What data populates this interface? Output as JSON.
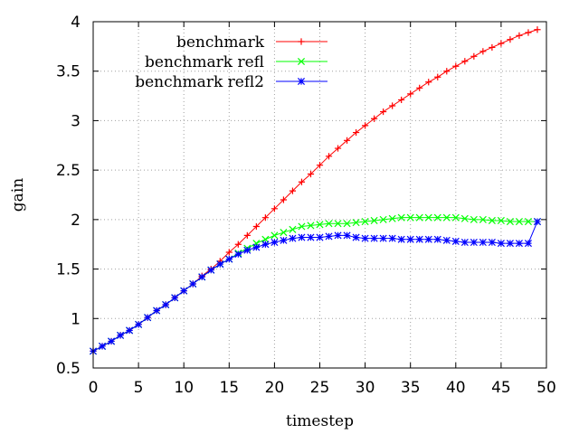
{
  "chart_data": {
    "type": "line",
    "title": "",
    "xlabel": "timestep",
    "ylabel": "gain",
    "xlim": [
      0,
      50
    ],
    "ylim": [
      0.5,
      4
    ],
    "xticks": [
      0,
      5,
      10,
      15,
      20,
      25,
      30,
      35,
      40,
      45,
      50
    ],
    "yticks": [
      0.5,
      1,
      1.5,
      2,
      2.5,
      3,
      3.5,
      4
    ],
    "xtick_labels": [
      "0",
      "5",
      "10",
      "15",
      "20",
      "25",
      "30",
      "35",
      "40",
      "45",
      "50"
    ],
    "ytick_labels": [
      "0.5",
      "1",
      "1.5",
      "2",
      "2.5",
      "3",
      "3.5",
      "4"
    ],
    "grid": true,
    "legend_position": "top-left",
    "x": [
      0,
      1,
      2,
      3,
      4,
      5,
      6,
      7,
      8,
      9,
      10,
      11,
      12,
      13,
      14,
      15,
      16,
      17,
      18,
      19,
      20,
      21,
      22,
      23,
      24,
      25,
      26,
      27,
      28,
      29,
      30,
      31,
      32,
      33,
      34,
      35,
      36,
      37,
      38,
      39,
      40,
      41,
      42,
      43,
      44,
      45,
      46,
      47,
      48,
      49
    ],
    "series": [
      {
        "name": "benchmark",
        "color": "#ff0000",
        "marker": "plus",
        "values": [
          0.67,
          0.72,
          0.77,
          0.83,
          0.88,
          0.94,
          1.01,
          1.08,
          1.14,
          1.21,
          1.28,
          1.35,
          1.43,
          1.5,
          1.58,
          1.67,
          1.75,
          1.84,
          1.93,
          2.02,
          2.11,
          2.2,
          2.29,
          2.38,
          2.46,
          2.55,
          2.64,
          2.72,
          2.8,
          2.88,
          2.95,
          3.02,
          3.09,
          3.15,
          3.21,
          3.27,
          3.33,
          3.39,
          3.44,
          3.5,
          3.55,
          3.6,
          3.65,
          3.7,
          3.74,
          3.78,
          3.82,
          3.86,
          3.89,
          3.92
        ]
      },
      {
        "name": "benchmark refl",
        "color": "#00ff00",
        "marker": "cross",
        "values": [
          0.67,
          0.72,
          0.77,
          0.83,
          0.88,
          0.94,
          1.01,
          1.08,
          1.14,
          1.21,
          1.28,
          1.35,
          1.42,
          1.49,
          1.55,
          1.6,
          1.66,
          1.71,
          1.76,
          1.8,
          1.84,
          1.87,
          1.9,
          1.93,
          1.94,
          1.95,
          1.96,
          1.96,
          1.96,
          1.97,
          1.98,
          1.99,
          2.0,
          2.01,
          2.02,
          2.02,
          2.02,
          2.02,
          2.02,
          2.02,
          2.02,
          2.01,
          2.0,
          2.0,
          1.99,
          1.99,
          1.98,
          1.98,
          1.98,
          1.98
        ]
      },
      {
        "name": "benchmark refl2",
        "color": "#0000ff",
        "marker": "star",
        "values": [
          0.67,
          0.72,
          0.77,
          0.83,
          0.88,
          0.94,
          1.01,
          1.08,
          1.14,
          1.21,
          1.28,
          1.35,
          1.42,
          1.49,
          1.55,
          1.6,
          1.65,
          1.69,
          1.72,
          1.75,
          1.77,
          1.79,
          1.81,
          1.82,
          1.82,
          1.82,
          1.83,
          1.84,
          1.84,
          1.82,
          1.81,
          1.81,
          1.81,
          1.81,
          1.8,
          1.8,
          1.8,
          1.8,
          1.8,
          1.79,
          1.78,
          1.77,
          1.77,
          1.77,
          1.77,
          1.76,
          1.76,
          1.76,
          1.76,
          1.98
        ]
      }
    ]
  }
}
